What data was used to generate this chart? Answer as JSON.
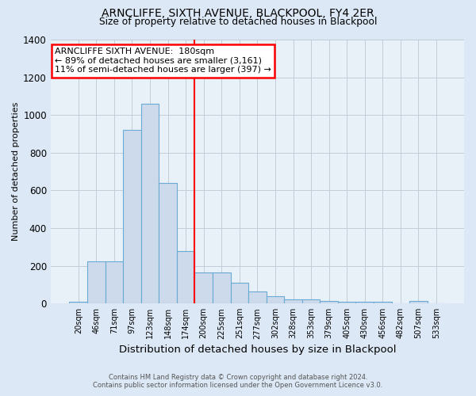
{
  "title": "ARNCLIFFE, SIXTH AVENUE, BLACKPOOL, FY4 2ER",
  "subtitle": "Size of property relative to detached houses in Blackpool",
  "xlabel": "Distribution of detached houses by size in Blackpool",
  "ylabel": "Number of detached properties",
  "footnote1": "Contains HM Land Registry data © Crown copyright and database right 2024.",
  "footnote2": "Contains public sector information licensed under the Open Government Licence v3.0.",
  "categories": [
    "20sqm",
    "46sqm",
    "71sqm",
    "97sqm",
    "123sqm",
    "148sqm",
    "174sqm",
    "200sqm",
    "225sqm",
    "251sqm",
    "277sqm",
    "302sqm",
    "328sqm",
    "353sqm",
    "379sqm",
    "405sqm",
    "430sqm",
    "456sqm",
    "482sqm",
    "507sqm",
    "533sqm"
  ],
  "values": [
    10,
    225,
    225,
    920,
    1060,
    640,
    280,
    165,
    165,
    110,
    65,
    40,
    20,
    20,
    15,
    10,
    8,
    8,
    0,
    12,
    0
  ],
  "bar_color": "#ccdaec",
  "bar_edge_color": "#6aaad4",
  "vline_x": 6.5,
  "vline_color": "red",
  "annotation_line1": "ARNCLIFFE SIXTH AVENUE:  180sqm",
  "annotation_line2": "← 89% of detached houses are smaller (3,161)",
  "annotation_line3": "11% of semi-detached houses are larger (397) →",
  "annotation_box_edge_color": "red",
  "annotation_fill": "white",
  "ylim": [
    0,
    1400
  ],
  "yticks": [
    0,
    200,
    400,
    600,
    800,
    1000,
    1200,
    1400
  ],
  "background_color": "#dce8f5",
  "plot_bg_color": "#e8f0f8",
  "grid_color": "#c0ccd8"
}
